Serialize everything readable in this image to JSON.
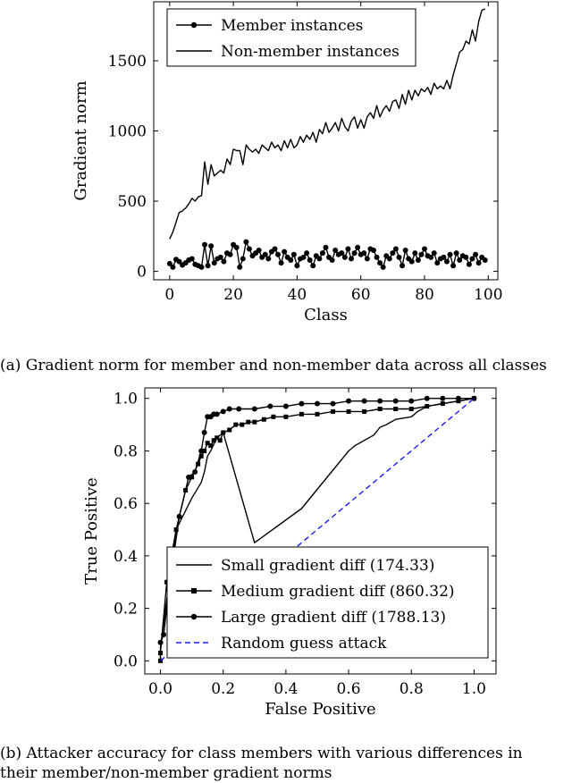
{
  "chart_data": [
    {
      "type": "line",
      "title": "",
      "xlabel": "Class",
      "ylabel": "Gradient norm",
      "xlim": [
        -5,
        103
      ],
      "ylim": [
        -60,
        1920
      ],
      "xticks": [
        0,
        20,
        40,
        60,
        80,
        100
      ],
      "yticks": [
        0,
        500,
        1000,
        1500
      ],
      "legend_position": "top-left",
      "grid": false,
      "series": [
        {
          "name": "Member instances",
          "marker": "circle",
          "x": [
            0,
            1,
            2,
            3,
            4,
            5,
            6,
            7,
            8,
            9,
            10,
            11,
            12,
            13,
            14,
            15,
            16,
            17,
            18,
            19,
            20,
            21,
            22,
            23,
            24,
            25,
            26,
            27,
            28,
            29,
            30,
            31,
            32,
            33,
            34,
            35,
            36,
            37,
            38,
            39,
            40,
            41,
            42,
            43,
            44,
            45,
            46,
            47,
            48,
            49,
            50,
            51,
            52,
            53,
            54,
            55,
            56,
            57,
            58,
            59,
            60,
            61,
            62,
            63,
            64,
            65,
            66,
            67,
            68,
            69,
            70,
            71,
            72,
            73,
            74,
            75,
            76,
            77,
            78,
            79,
            80,
            81,
            82,
            83,
            84,
            85,
            86,
            87,
            88,
            89,
            90,
            91,
            92,
            93,
            94,
            95,
            96,
            97,
            98,
            99
          ],
          "values": [
            55,
            30,
            85,
            70,
            45,
            60,
            80,
            90,
            50,
            40,
            30,
            190,
            40,
            180,
            60,
            90,
            100,
            70,
            130,
            120,
            190,
            170,
            30,
            90,
            210,
            160,
            110,
            130,
            150,
            100,
            120,
            90,
            140,
            160,
            120,
            60,
            140,
            100,
            80,
            120,
            40,
            90,
            100,
            130,
            80,
            40,
            110,
            90,
            130,
            170,
            100,
            80,
            150,
            120,
            130,
            100,
            160,
            90,
            130,
            170,
            120,
            130,
            90,
            160,
            150,
            100,
            60,
            30,
            110,
            90,
            130,
            160,
            100,
            40,
            150,
            90,
            70,
            130,
            80,
            120,
            160,
            110,
            100,
            130,
            60,
            90,
            100,
            70,
            120,
            40,
            130,
            80,
            110,
            100,
            50,
            90,
            120,
            60,
            100,
            80
          ]
        },
        {
          "name": "Non-member instances",
          "marker": "none",
          "x": [
            0,
            1,
            2,
            3,
            4,
            5,
            6,
            7,
            8,
            9,
            10,
            11,
            12,
            13,
            14,
            15,
            16,
            17,
            18,
            19,
            20,
            21,
            22,
            23,
            24,
            25,
            26,
            27,
            28,
            29,
            30,
            31,
            32,
            33,
            34,
            35,
            36,
            37,
            38,
            39,
            40,
            41,
            42,
            43,
            44,
            45,
            46,
            47,
            48,
            49,
            50,
            51,
            52,
            53,
            54,
            55,
            56,
            57,
            58,
            59,
            60,
            61,
            62,
            63,
            64,
            65,
            66,
            67,
            68,
            69,
            70,
            71,
            72,
            73,
            74,
            75,
            76,
            77,
            78,
            79,
            80,
            81,
            82,
            83,
            84,
            85,
            86,
            87,
            88,
            89,
            90,
            91,
            92,
            93,
            94,
            95,
            96,
            97,
            98,
            99
          ],
          "values": [
            230,
            280,
            350,
            420,
            430,
            450,
            480,
            520,
            500,
            530,
            540,
            780,
            620,
            760,
            680,
            700,
            720,
            700,
            800,
            760,
            870,
            860,
            860,
            760,
            900,
            870,
            850,
            870,
            840,
            900,
            880,
            860,
            920,
            880,
            900,
            860,
            930,
            880,
            940,
            880,
            900,
            960,
            920,
            970,
            940,
            990,
            920,
            1010,
            980,
            1060,
            990,
            1020,
            1060,
            1000,
            1090,
            1030,
            1000,
            1070,
            1100,
            1020,
            1080,
            1020,
            1100,
            1130,
            1090,
            1180,
            1100,
            1150,
            1180,
            1140,
            1210,
            1220,
            1160,
            1260,
            1190,
            1290,
            1220,
            1290,
            1250,
            1300,
            1280,
            1310,
            1260,
            1340,
            1300,
            1320,
            1300,
            1360,
            1300,
            1400,
            1480,
            1560,
            1580,
            1640,
            1620,
            1720,
            1640,
            1780,
            1860,
            1870
          ]
        }
      ]
    },
    {
      "type": "line",
      "title": "",
      "xlabel": "False Positive",
      "ylabel": "True Positive",
      "xlim": [
        -0.05,
        1.07
      ],
      "ylim": [
        -0.05,
        1.04
      ],
      "xticks": [
        0.0,
        0.2,
        0.4,
        0.6,
        0.8,
        1.0
      ],
      "yticks": [
        0.0,
        0.2,
        0.4,
        0.6,
        0.8,
        1.0
      ],
      "legend_position": "bottom-right",
      "grid": false,
      "series": [
        {
          "name": "Small gradient diff (174.33)",
          "marker": "none",
          "dash": "solid",
          "color": "#000000",
          "x": [
            0.0,
            0.0,
            0.05,
            0.1,
            0.13,
            0.14,
            0.15,
            0.16,
            0.18,
            0.2,
            0.3,
            0.45,
            0.6,
            0.62,
            0.65,
            0.68,
            0.7,
            0.72,
            0.75,
            0.8,
            0.82,
            0.85,
            0.9,
            0.95,
            1.0
          ],
          "y": [
            0.0,
            0.05,
            0.5,
            0.62,
            0.68,
            0.72,
            0.78,
            0.8,
            0.85,
            0.87,
            0.45,
            0.58,
            0.8,
            0.82,
            0.84,
            0.86,
            0.89,
            0.9,
            0.92,
            0.93,
            0.95,
            0.97,
            0.98,
            0.99,
            1.0
          ]
        },
        {
          "name": "Medium gradient diff (860.32)",
          "marker": "square",
          "dash": "solid",
          "color": "#000000",
          "x": [
            0.0,
            0.0,
            0.02,
            0.05,
            0.08,
            0.1,
            0.12,
            0.13,
            0.14,
            0.15,
            0.16,
            0.17,
            0.18,
            0.19,
            0.2,
            0.22,
            0.24,
            0.26,
            0.28,
            0.3,
            0.33,
            0.36,
            0.4,
            0.45,
            0.5,
            0.55,
            0.6,
            0.65,
            0.7,
            0.75,
            0.8,
            0.85,
            0.9,
            0.95,
            1.0
          ],
          "y": [
            0.0,
            0.03,
            0.3,
            0.5,
            0.65,
            0.7,
            0.75,
            0.78,
            0.8,
            0.83,
            0.82,
            0.84,
            0.85,
            0.84,
            0.87,
            0.88,
            0.9,
            0.9,
            0.91,
            0.91,
            0.92,
            0.93,
            0.93,
            0.94,
            0.94,
            0.95,
            0.95,
            0.95,
            0.96,
            0.96,
            0.96,
            0.97,
            0.98,
            0.99,
            1.0
          ]
        },
        {
          "name": "Large gradient diff (1788.13)",
          "marker": "circle",
          "dash": "solid",
          "color": "#000000",
          "x": [
            0.0,
            0.01,
            0.03,
            0.06,
            0.09,
            0.11,
            0.13,
            0.14,
            0.15,
            0.16,
            0.17,
            0.18,
            0.2,
            0.22,
            0.25,
            0.3,
            0.35,
            0.4,
            0.45,
            0.5,
            0.55,
            0.6,
            0.65,
            0.7,
            0.75,
            0.8,
            0.85,
            0.9,
            0.95,
            1.0
          ],
          "y": [
            0.07,
            0.1,
            0.3,
            0.55,
            0.7,
            0.72,
            0.8,
            0.87,
            0.93,
            0.93,
            0.94,
            0.94,
            0.95,
            0.96,
            0.96,
            0.96,
            0.97,
            0.97,
            0.98,
            0.98,
            0.98,
            0.99,
            0.99,
            0.99,
            0.99,
            0.99,
            1.0,
            1.0,
            1.0,
            1.0
          ]
        },
        {
          "name": "Random guess attack",
          "marker": "none",
          "dash": "dashed",
          "color": "#1a1aff",
          "x": [
            0.0,
            1.0
          ],
          "y": [
            0.0,
            1.0
          ]
        }
      ]
    }
  ],
  "captions": {
    "a": "(a) Gradient norm for member and non-member data across all classes",
    "b_line1": "(b) Attacker accuracy for class members with various differences in",
    "b_line2": "their member/non-member gradient norms"
  }
}
